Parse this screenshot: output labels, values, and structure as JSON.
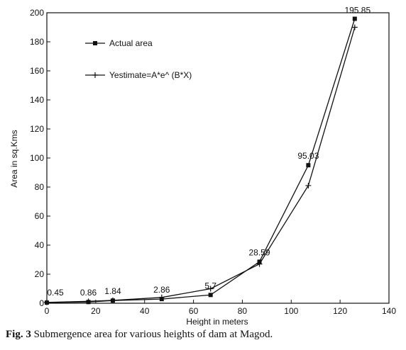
{
  "caption": {
    "label": "Fig. 3",
    "text": "Submergence area for various heights of dam at Magod."
  },
  "chart_data": {
    "type": "line",
    "title": "",
    "xlabel": "Height in meters",
    "ylabel": "Area in sq.Kms",
    "xlim": [
      0,
      140
    ],
    "ylim": [
      0,
      200
    ],
    "xticks": [
      0,
      20,
      40,
      60,
      80,
      100,
      120,
      140
    ],
    "yticks": [
      0,
      20,
      40,
      60,
      80,
      100,
      120,
      140,
      160,
      180,
      200
    ],
    "grid": false,
    "legend_position": "top-left",
    "series": [
      {
        "name": "Actual area",
        "marker": "square",
        "x": [
          0,
          17,
          27,
          47,
          67,
          87,
          107,
          126
        ],
        "y": [
          0.45,
          0.86,
          1.84,
          2.86,
          5.7,
          28.59,
          95.03,
          195.85
        ],
        "labels": [
          "0.45",
          "0.86",
          "1.84",
          "2.86",
          "5.7",
          "28.59",
          "95.03",
          "195.85"
        ]
      },
      {
        "name": "Yestimate=A*e^ (B*X)",
        "marker": "plus",
        "x": [
          0,
          17,
          27,
          47,
          67,
          87,
          107,
          126
        ],
        "y": [
          0.6,
          1.3,
          2.0,
          4.0,
          10.0,
          27.0,
          81.0,
          190.0
        ]
      }
    ]
  }
}
